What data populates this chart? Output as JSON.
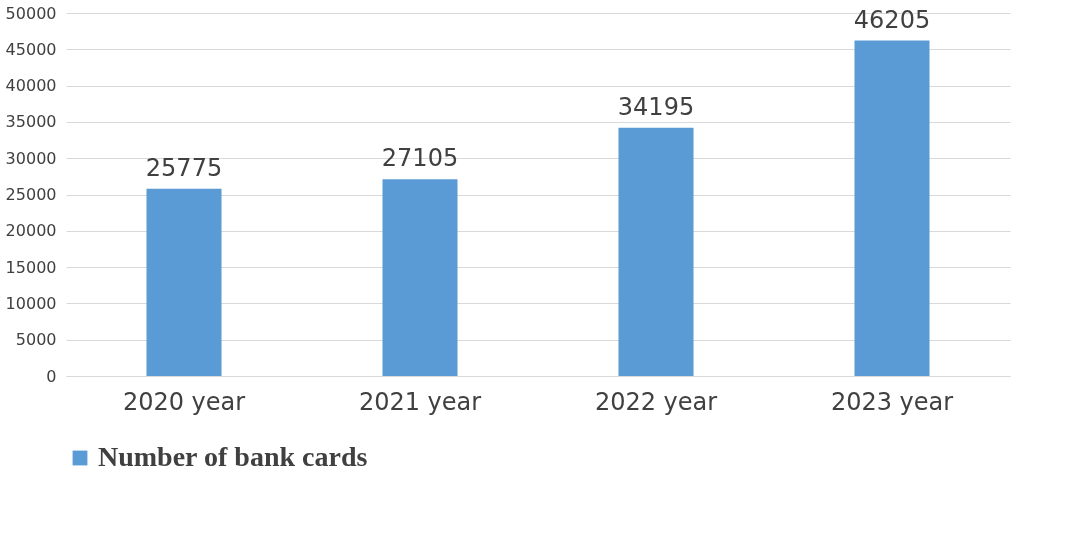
{
  "chart_data": {
    "type": "bar",
    "categories": [
      "2020 year",
      "2021 year",
      "2022 year",
      "2023 year"
    ],
    "series": [
      {
        "name": "Number of bank cards",
        "color": "#5b9bd5",
        "values": [
          25775,
          27105,
          34195,
          46205
        ]
      }
    ],
    "ylim": [
      0,
      50000
    ],
    "yticks": [
      0,
      5000,
      10000,
      15000,
      20000,
      25000,
      30000,
      35000,
      40000,
      45000,
      50000
    ],
    "grid": "y",
    "legend": "bottom",
    "data_labels": true
  }
}
